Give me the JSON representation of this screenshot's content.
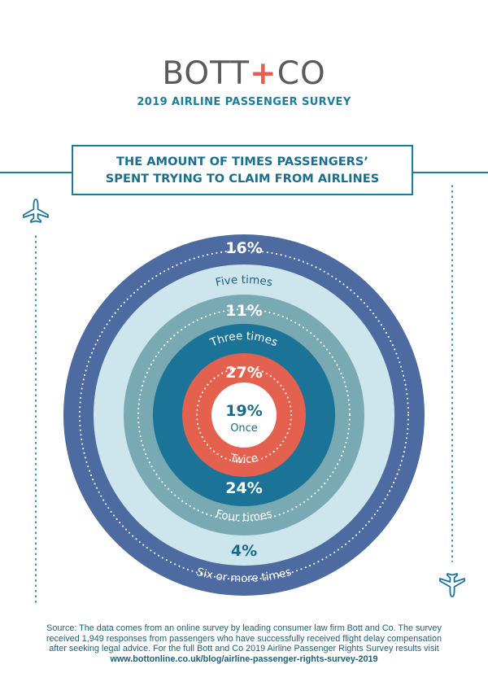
{
  "header": {
    "brand_left": "BOTT",
    "brand_plus": "+",
    "brand_right": "CO",
    "subtitle": "2019 AIRLINE PASSENGER SURVEY"
  },
  "title": {
    "line1": "THE AMOUNT OF TIMES PASSENGERS’",
    "line2": "SPENT TRYING TO CLAIM FROM AIRLINES"
  },
  "chart_data": {
    "type": "pie",
    "title": "THE AMOUNT OF TIMES PASSENGERS’ SPENT TRYING TO CLAIM FROM AIRLINES",
    "categories": [
      "Once",
      "Twice",
      "Three times",
      "Four times",
      "Five times",
      "Six or more times"
    ],
    "values": [
      19,
      27,
      11,
      24,
      16,
      4
    ],
    "value_labels": [
      "19%",
      "27%",
      "11%",
      "24%",
      "16%",
      "4%"
    ],
    "unit": "%",
    "colors": {
      "ring_outer": "#4d6ba1",
      "ring_light": "#cde5ec",
      "ring_mid": "#79aab4",
      "ring_teal": "#1b7497",
      "ring_coral": "#e5614f",
      "center": "#ffffff",
      "center_text": "#1b6b88",
      "white_text": "#ffffff",
      "dark_label": "#1e5f7e"
    }
  },
  "icons": {
    "top_left": "airplane-icon",
    "bottom_right": "airplane-icon"
  },
  "colors": {
    "brand_grey": "#5d5a5c",
    "accent_coral": "#e5614f",
    "accent_teal": "#1c7d9b",
    "dotted_line": "#1b7497"
  },
  "source": {
    "text": "Source: The data comes from an online survey by leading consumer law firm Bott and Co. The survey received 1,949 responses from passengers who have successfully received flight delay compensation after seeking legal advice. For the full Bott and Co 2019 Airline Passenger Rights Survey results visit ",
    "link": "www.bottonline.co.uk/blog/airline-passenger-rights-survey-2019"
  }
}
